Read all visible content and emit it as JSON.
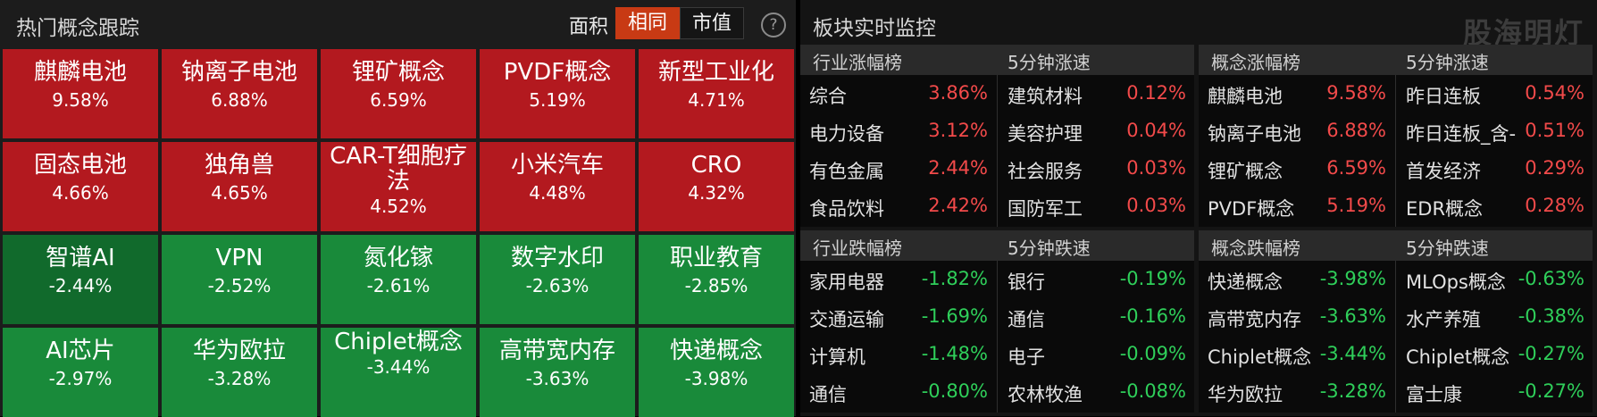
{
  "left": {
    "title": "热门概念跟踪",
    "sort_label": "面积",
    "seg_active": "相同",
    "seg_inactive": "市值",
    "help_icon": "?",
    "tiles": [
      {
        "name": "麒麟电池",
        "pct": "9.58%",
        "dir": "up"
      },
      {
        "name": "钠离子电池",
        "pct": "6.88%",
        "dir": "up"
      },
      {
        "name": "锂矿概念",
        "pct": "6.59%",
        "dir": "up"
      },
      {
        "name": "PVDF概念",
        "pct": "5.19%",
        "dir": "up"
      },
      {
        "name": "新型工业化",
        "pct": "4.71%",
        "dir": "up"
      },
      {
        "name": "固态电池",
        "pct": "4.66%",
        "dir": "up"
      },
      {
        "name": "独角兽",
        "pct": "4.65%",
        "dir": "up"
      },
      {
        "name": "CAR-T细胞疗法",
        "pct": "4.52%",
        "dir": "up"
      },
      {
        "name": "小米汽车",
        "pct": "4.48%",
        "dir": "up"
      },
      {
        "name": "CRO",
        "pct": "4.32%",
        "dir": "up"
      },
      {
        "name": "智谱AI",
        "pct": "-2.44%",
        "dir": "down"
      },
      {
        "name": "VPN",
        "pct": "-2.52%",
        "dir": "down"
      },
      {
        "name": "氮化镓",
        "pct": "-2.61%",
        "dir": "down"
      },
      {
        "name": "数字水印",
        "pct": "-2.63%",
        "dir": "down"
      },
      {
        "name": "职业教育",
        "pct": "-2.85%",
        "dir": "down"
      },
      {
        "name": "AI芯片",
        "pct": "-2.97%",
        "dir": "down"
      },
      {
        "name": "华为欧拉",
        "pct": "-3.28%",
        "dir": "down"
      },
      {
        "name": "Chiplet概念",
        "pct": "-3.44%",
        "dir": "down"
      },
      {
        "name": "高带宽内存",
        "pct": "-3.63%",
        "dir": "down"
      },
      {
        "name": "快递概念",
        "pct": "-3.98%",
        "dir": "down"
      }
    ]
  },
  "right": {
    "title": "板块实时监控",
    "watermark": "股海明灯",
    "quads": [
      {
        "head_left": "行业涨幅榜",
        "head_right": "5分钟涨速",
        "dir": "up",
        "rows": [
          {
            "a": "综合",
            "ap": "3.86%",
            "b": "建筑材料",
            "bp": "0.12%"
          },
          {
            "a": "电力设备",
            "ap": "3.12%",
            "b": "美容护理",
            "bp": "0.04%"
          },
          {
            "a": "有色金属",
            "ap": "2.44%",
            "b": "社会服务",
            "bp": "0.03%"
          },
          {
            "a": "食品饮料",
            "ap": "2.42%",
            "b": "国防军工",
            "bp": "0.03%"
          }
        ]
      },
      {
        "head_left": "概念涨幅榜",
        "head_right": "5分钟涨速",
        "dir": "up",
        "rows": [
          {
            "a": "麒麟电池",
            "ap": "9.58%",
            "b": "昨日连板",
            "bp": "0.54%"
          },
          {
            "a": "钠离子电池",
            "ap": "6.88%",
            "b": "昨日连板_含-",
            "bp": "0.51%"
          },
          {
            "a": "锂矿概念",
            "ap": "6.59%",
            "b": "首发经济",
            "bp": "0.29%"
          },
          {
            "a": "PVDF概念",
            "ap": "5.19%",
            "b": "EDR概念",
            "bp": "0.28%"
          }
        ]
      },
      {
        "head_left": "行业跌幅榜",
        "head_right": "5分钟跌速",
        "dir": "down",
        "rows": [
          {
            "a": "家用电器",
            "ap": "-1.82%",
            "b": "银行",
            "bp": "-0.19%"
          },
          {
            "a": "交通运输",
            "ap": "-1.69%",
            "b": "通信",
            "bp": "-0.16%"
          },
          {
            "a": "计算机",
            "ap": "-1.48%",
            "b": "电子",
            "bp": "-0.09%"
          },
          {
            "a": "通信",
            "ap": "-0.80%",
            "b": "农林牧渔",
            "bp": "-0.08%"
          }
        ]
      },
      {
        "head_left": "概念跌幅榜",
        "head_right": "5分钟跌速",
        "dir": "down",
        "rows": [
          {
            "a": "快递概念",
            "ap": "-3.98%",
            "b": "MLOps概念",
            "bp": "-0.63%"
          },
          {
            "a": "高带宽内存",
            "ap": "-3.63%",
            "b": "水产养殖",
            "bp": "-0.38%"
          },
          {
            "a": "Chiplet概念",
            "ap": "-3.44%",
            "b": "Chiplet概念",
            "bp": "-0.27%"
          },
          {
            "a": "华为欧拉",
            "ap": "-3.28%",
            "b": "富士康",
            "bp": "-0.27%"
          }
        ]
      }
    ]
  }
}
